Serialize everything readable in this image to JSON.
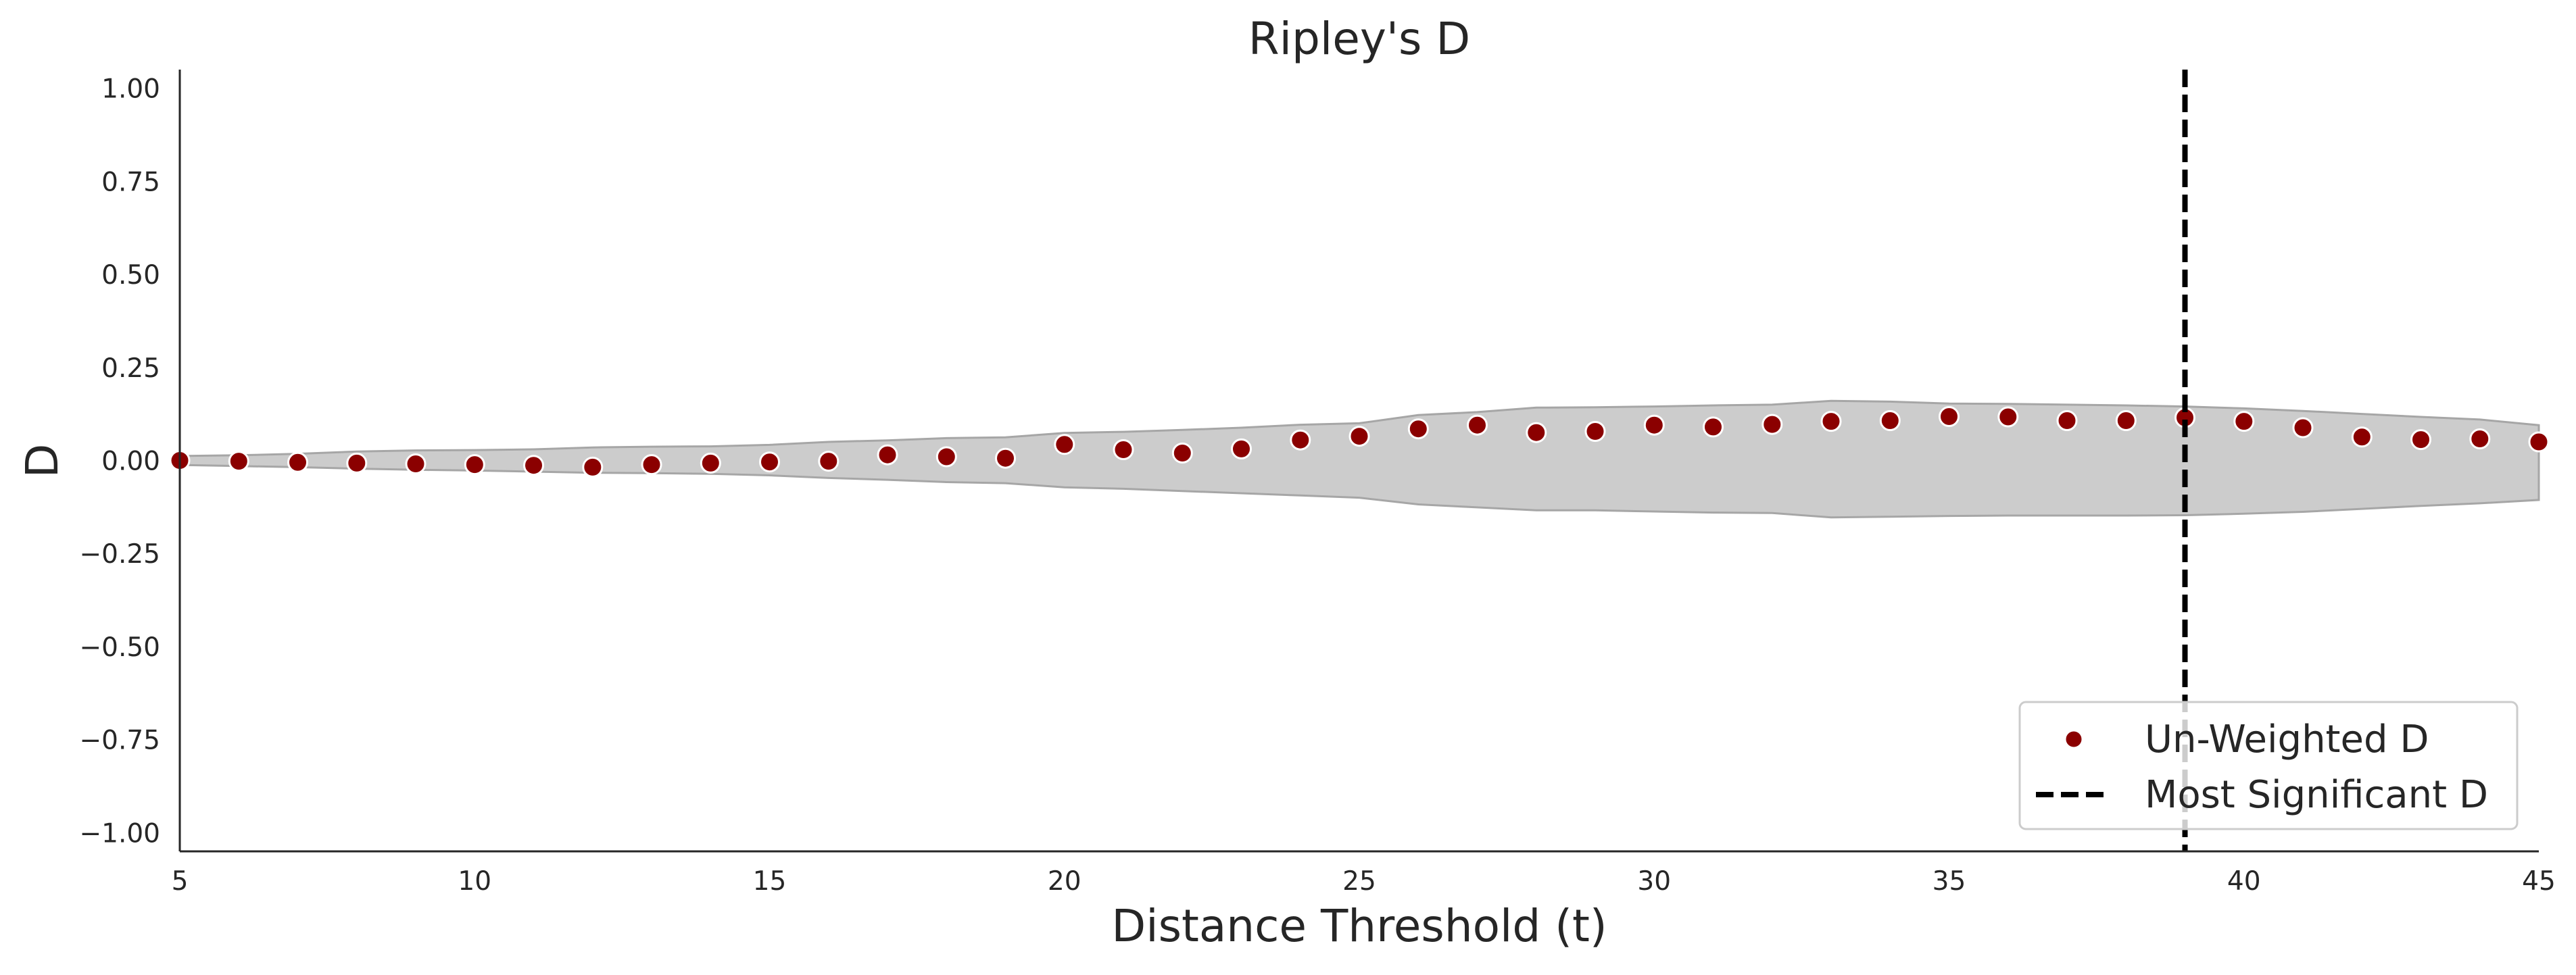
{
  "chart_data": {
    "type": "scatter",
    "title": "Ripley's D",
    "xlabel": "Distance Threshold (t)",
    "ylabel": "D",
    "xlim": [
      5,
      45
    ],
    "ylim": [
      -1.05,
      1.05
    ],
    "xticks": [
      5,
      10,
      15,
      20,
      25,
      30,
      35,
      40,
      45
    ],
    "xtick_labels": [
      "5",
      "10",
      "15",
      "20",
      "25",
      "30",
      "35",
      "40",
      "45"
    ],
    "yticks": [
      1.0,
      0.75,
      0.5,
      0.25,
      0.0,
      -0.25,
      -0.5,
      -0.75,
      -1.0
    ],
    "ytick_labels": [
      "1.00",
      "0.75",
      "0.50",
      "0.25",
      "0.00",
      "−0.25",
      "−0.50",
      "−0.75",
      "−1.00"
    ],
    "grid": false,
    "legend_position": "lower-right",
    "series": [
      {
        "name": "Un-Weighted D",
        "kind": "scatter",
        "color": "#8b0000",
        "x": [
          5,
          6,
          7,
          8,
          9,
          10,
          11,
          12,
          13,
          14,
          15,
          16,
          17,
          18,
          19,
          20,
          21,
          22,
          23,
          24,
          25,
          26,
          27,
          28,
          29,
          30,
          31,
          32,
          33,
          34,
          35,
          36,
          37,
          38,
          39,
          40,
          41,
          42,
          43,
          44,
          45
        ],
        "y": [
          0.0,
          -0.002,
          -0.005,
          -0.007,
          -0.009,
          -0.011,
          -0.013,
          -0.018,
          -0.011,
          -0.007,
          -0.004,
          -0.002,
          0.015,
          0.01,
          0.006,
          0.043,
          0.029,
          0.02,
          0.031,
          0.055,
          0.065,
          0.085,
          0.095,
          0.075,
          0.078,
          0.095,
          0.09,
          0.097,
          0.105,
          0.107,
          0.118,
          0.117,
          0.107,
          0.107,
          0.115,
          0.105,
          0.088,
          0.063,
          0.056,
          0.058,
          0.05
        ]
      },
      {
        "name": "Most Significant D",
        "kind": "vline",
        "color": "#000000",
        "x": 39
      }
    ],
    "envelope": {
      "color": "#cccccc",
      "edge_color": "#a6a6a6",
      "x": [
        5,
        6,
        7,
        8,
        9,
        10,
        11,
        12,
        13,
        14,
        15,
        16,
        17,
        18,
        19,
        20,
        21,
        22,
        23,
        24,
        25,
        26,
        27,
        28,
        29,
        30,
        31,
        32,
        33,
        34,
        35,
        36,
        37,
        38,
        39,
        40,
        41,
        42,
        43,
        44,
        45
      ],
      "upper": [
        0.012,
        0.014,
        0.018,
        0.024,
        0.027,
        0.028,
        0.03,
        0.035,
        0.037,
        0.038,
        0.042,
        0.05,
        0.054,
        0.06,
        0.062,
        0.074,
        0.077,
        0.082,
        0.088,
        0.096,
        0.1,
        0.122,
        0.13,
        0.142,
        0.143,
        0.145,
        0.148,
        0.15,
        0.16,
        0.158,
        0.153,
        0.152,
        0.15,
        0.148,
        0.145,
        0.14,
        0.133,
        0.125,
        0.117,
        0.11,
        0.095
      ],
      "lower": [
        -0.012,
        -0.015,
        -0.018,
        -0.022,
        -0.025,
        -0.027,
        -0.03,
        -0.033,
        -0.034,
        -0.036,
        -0.04,
        -0.047,
        -0.052,
        -0.058,
        -0.061,
        -0.072,
        -0.076,
        -0.082,
        -0.088,
        -0.094,
        -0.1,
        -0.118,
        -0.126,
        -0.134,
        -0.134,
        -0.137,
        -0.14,
        -0.141,
        -0.153,
        -0.151,
        -0.149,
        -0.148,
        -0.148,
        -0.148,
        -0.147,
        -0.143,
        -0.138,
        -0.13,
        -0.122,
        -0.115,
        -0.106
      ]
    }
  }
}
